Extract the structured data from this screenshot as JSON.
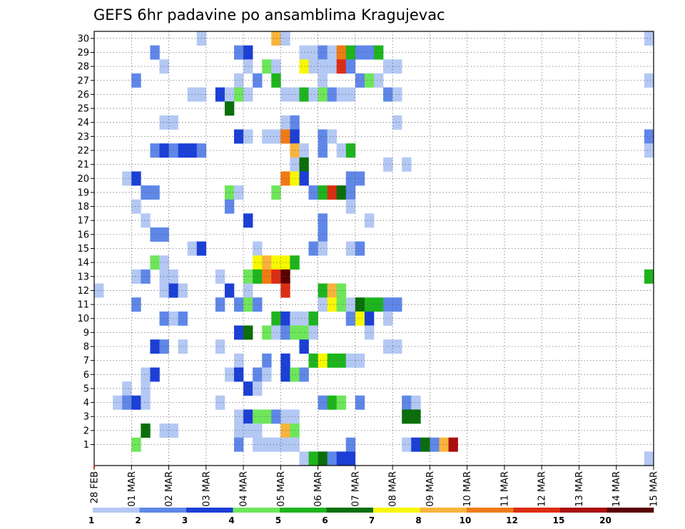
{
  "chart_data": {
    "type": "heatmap",
    "title": "GEFS 6hr padavine po ansamblima Kragujevac",
    "x_tick_labels": [
      "28 FEB",
      "01 MAR",
      "02 MAR",
      "03 MAR",
      "04 MAR",
      "05 MAR",
      "06 MAR",
      "07 MAR",
      "08 MAR",
      "09 MAR",
      "10 MAR",
      "11 MAR",
      "12 MAR",
      "13 MAR",
      "14 MAR",
      "15 MAR"
    ],
    "x_time_steps_per_day": 4,
    "xlim": [
      0,
      60
    ],
    "y_tick_labels": [
      "1",
      "2",
      "3",
      "4",
      "5",
      "6",
      "7",
      "8",
      "9",
      "10",
      "11",
      "12",
      "13",
      "14",
      "15",
      "16",
      "17",
      "18",
      "19",
      "20",
      "21",
      "22",
      "23",
      "24",
      "25",
      "26",
      "27",
      "28",
      "29",
      "30"
    ],
    "ylim": [
      0,
      30
    ],
    "grid": true,
    "legend_position": "bottom",
    "legend": {
      "labels": [
        "1",
        "2",
        "3",
        "4",
        "5",
        "6",
        "7",
        "8",
        "10",
        "12",
        "15",
        "20"
      ],
      "colors": [
        "#b4c8f4",
        "#5f87e8",
        "#1c3fd6",
        "#6ee65a",
        "#1eb41e",
        "#0a6e0a",
        "#f8f800",
        "#f8b43c",
        "#f07a14",
        "#dc2d14",
        "#aa0e0e",
        "#5a0000"
      ]
    },
    "cell_format": "[member, step_index(0-59, 6h), color_class(1-12)]",
    "cells": [
      [
        30,
        11,
        1
      ],
      [
        30,
        19,
        8
      ],
      [
        30,
        20,
        1
      ],
      [
        30,
        59,
        1
      ],
      [
        29,
        6,
        2
      ],
      [
        29,
        15,
        2
      ],
      [
        29,
        16,
        3
      ],
      [
        29,
        22,
        1
      ],
      [
        29,
        23,
        1
      ],
      [
        29,
        24,
        2
      ],
      [
        29,
        25,
        1
      ],
      [
        29,
        26,
        9
      ],
      [
        29,
        27,
        5
      ],
      [
        29,
        28,
        2
      ],
      [
        29,
        29,
        2
      ],
      [
        29,
        30,
        5
      ],
      [
        28,
        7,
        1
      ],
      [
        28,
        16,
        1
      ],
      [
        28,
        18,
        4
      ],
      [
        28,
        19,
        1
      ],
      [
        28,
        22,
        7
      ],
      [
        28,
        23,
        1
      ],
      [
        28,
        24,
        1
      ],
      [
        28,
        25,
        1
      ],
      [
        28,
        26,
        10
      ],
      [
        28,
        27,
        2
      ],
      [
        28,
        31,
        1
      ],
      [
        28,
        32,
        1
      ],
      [
        27,
        4,
        2
      ],
      [
        27,
        15,
        1
      ],
      [
        27,
        17,
        2
      ],
      [
        27,
        19,
        5
      ],
      [
        27,
        24,
        1
      ],
      [
        27,
        28,
        2
      ],
      [
        27,
        29,
        4
      ],
      [
        27,
        30,
        1
      ],
      [
        27,
        59,
        1
      ],
      [
        26,
        10,
        1
      ],
      [
        26,
        11,
        1
      ],
      [
        26,
        13,
        3
      ],
      [
        26,
        14,
        1
      ],
      [
        26,
        15,
        4
      ],
      [
        26,
        16,
        1
      ],
      [
        26,
        20,
        1
      ],
      [
        26,
        21,
        1
      ],
      [
        26,
        22,
        5
      ],
      [
        26,
        23,
        1
      ],
      [
        26,
        24,
        4
      ],
      [
        26,
        25,
        2
      ],
      [
        26,
        26,
        1
      ],
      [
        26,
        27,
        1
      ],
      [
        26,
        31,
        2
      ],
      [
        26,
        32,
        1
      ],
      [
        25,
        14,
        6
      ],
      [
        24,
        7,
        1
      ],
      [
        24,
        8,
        1
      ],
      [
        24,
        20,
        1
      ],
      [
        24,
        21,
        2
      ],
      [
        24,
        32,
        1
      ],
      [
        23,
        15,
        3
      ],
      [
        23,
        16,
        1
      ],
      [
        23,
        18,
        1
      ],
      [
        23,
        19,
        1
      ],
      [
        23,
        20,
        9
      ],
      [
        23,
        21,
        3
      ],
      [
        23,
        24,
        2
      ],
      [
        23,
        25,
        1
      ],
      [
        23,
        59,
        2
      ],
      [
        22,
        6,
        2
      ],
      [
        22,
        7,
        3
      ],
      [
        22,
        8,
        2
      ],
      [
        22,
        9,
        3
      ],
      [
        22,
        10,
        3
      ],
      [
        22,
        11,
        2
      ],
      [
        22,
        21,
        8
      ],
      [
        22,
        22,
        1
      ],
      [
        22,
        24,
        2
      ],
      [
        22,
        26,
        1
      ],
      [
        22,
        27,
        5
      ],
      [
        22,
        59,
        1
      ],
      [
        21,
        21,
        1
      ],
      [
        21,
        22,
        6
      ],
      [
        21,
        31,
        1
      ],
      [
        21,
        33,
        1
      ],
      [
        20,
        3,
        1
      ],
      [
        20,
        4,
        3
      ],
      [
        20,
        20,
        9
      ],
      [
        20,
        21,
        7
      ],
      [
        20,
        22,
        3
      ],
      [
        20,
        27,
        2
      ],
      [
        20,
        28,
        2
      ],
      [
        19,
        5,
        2
      ],
      [
        19,
        6,
        2
      ],
      [
        19,
        14,
        4
      ],
      [
        19,
        15,
        1
      ],
      [
        19,
        19,
        4
      ],
      [
        19,
        23,
        2
      ],
      [
        19,
        24,
        5
      ],
      [
        19,
        25,
        10
      ],
      [
        19,
        26,
        6
      ],
      [
        19,
        27,
        2
      ],
      [
        18,
        4,
        1
      ],
      [
        18,
        14,
        2
      ],
      [
        18,
        27,
        1
      ],
      [
        17,
        5,
        1
      ],
      [
        17,
        16,
        3
      ],
      [
        17,
        24,
        2
      ],
      [
        17,
        29,
        1
      ],
      [
        16,
        6,
        2
      ],
      [
        16,
        7,
        2
      ],
      [
        16,
        24,
        2
      ],
      [
        15,
        10,
        1
      ],
      [
        15,
        11,
        3
      ],
      [
        15,
        17,
        1
      ],
      [
        15,
        23,
        2
      ],
      [
        15,
        24,
        1
      ],
      [
        15,
        27,
        1
      ],
      [
        15,
        28,
        2
      ],
      [
        14,
        6,
        4
      ],
      [
        14,
        7,
        1
      ],
      [
        14,
        17,
        7
      ],
      [
        14,
        18,
        8
      ],
      [
        14,
        19,
        7
      ],
      [
        14,
        20,
        7
      ],
      [
        14,
        21,
        5
      ],
      [
        13,
        4,
        1
      ],
      [
        13,
        5,
        2
      ],
      [
        13,
        7,
        1
      ],
      [
        13,
        8,
        1
      ],
      [
        13,
        13,
        1
      ],
      [
        13,
        16,
        4
      ],
      [
        13,
        17,
        5
      ],
      [
        13,
        18,
        9
      ],
      [
        13,
        19,
        10
      ],
      [
        13,
        20,
        12
      ],
      [
        13,
        59,
        5
      ],
      [
        12,
        0,
        1
      ],
      [
        12,
        7,
        1
      ],
      [
        12,
        8,
        3
      ],
      [
        12,
        9,
        1
      ],
      [
        12,
        14,
        3
      ],
      [
        12,
        16,
        1
      ],
      [
        12,
        20,
        10
      ],
      [
        12,
        24,
        5
      ],
      [
        12,
        25,
        8
      ],
      [
        12,
        26,
        4
      ],
      [
        11,
        4,
        2
      ],
      [
        11,
        13,
        2
      ],
      [
        11,
        15,
        2
      ],
      [
        11,
        16,
        4
      ],
      [
        11,
        17,
        2
      ],
      [
        11,
        24,
        1
      ],
      [
        11,
        25,
        7
      ],
      [
        11,
        26,
        4
      ],
      [
        11,
        27,
        1
      ],
      [
        11,
        28,
        6
      ],
      [
        11,
        29,
        5
      ],
      [
        11,
        30,
        5
      ],
      [
        11,
        31,
        2
      ],
      [
        11,
        32,
        2
      ],
      [
        10,
        7,
        2
      ],
      [
        10,
        8,
        1
      ],
      [
        10,
        9,
        2
      ],
      [
        10,
        19,
        5
      ],
      [
        10,
        20,
        3
      ],
      [
        10,
        21,
        1
      ],
      [
        10,
        22,
        1
      ],
      [
        10,
        23,
        5
      ],
      [
        10,
        27,
        2
      ],
      [
        10,
        28,
        7
      ],
      [
        10,
        29,
        3
      ],
      [
        10,
        31,
        1
      ],
      [
        9,
        15,
        3
      ],
      [
        9,
        16,
        6
      ],
      [
        9,
        18,
        4
      ],
      [
        9,
        19,
        1
      ],
      [
        9,
        20,
        2
      ],
      [
        9,
        21,
        4
      ],
      [
        9,
        22,
        4
      ],
      [
        9,
        23,
        1
      ],
      [
        9,
        29,
        1
      ],
      [
        8,
        6,
        3
      ],
      [
        8,
        7,
        2
      ],
      [
        8,
        9,
        1
      ],
      [
        8,
        13,
        1
      ],
      [
        8,
        22,
        3
      ],
      [
        8,
        31,
        1
      ],
      [
        8,
        32,
        1
      ],
      [
        7,
        15,
        1
      ],
      [
        7,
        18,
        2
      ],
      [
        7,
        20,
        3
      ],
      [
        7,
        23,
        5
      ],
      [
        7,
        24,
        7
      ],
      [
        7,
        25,
        5
      ],
      [
        7,
        26,
        5
      ],
      [
        7,
        27,
        1
      ],
      [
        7,
        28,
        1
      ],
      [
        6,
        5,
        1
      ],
      [
        6,
        6,
        3
      ],
      [
        6,
        14,
        1
      ],
      [
        6,
        15,
        3
      ],
      [
        6,
        17,
        2
      ],
      [
        6,
        18,
        1
      ],
      [
        6,
        20,
        3
      ],
      [
        6,
        21,
        4
      ],
      [
        6,
        22,
        2
      ],
      [
        5,
        3,
        1
      ],
      [
        5,
        5,
        1
      ],
      [
        5,
        16,
        3
      ],
      [
        5,
        17,
        1
      ],
      [
        4,
        2,
        1
      ],
      [
        4,
        3,
        2
      ],
      [
        4,
        4,
        3
      ],
      [
        4,
        5,
        1
      ],
      [
        4,
        13,
        1
      ],
      [
        4,
        24,
        2
      ],
      [
        4,
        25,
        5
      ],
      [
        4,
        26,
        4
      ],
      [
        4,
        28,
        2
      ],
      [
        4,
        33,
        2
      ],
      [
        4,
        34,
        1
      ],
      [
        3,
        15,
        1
      ],
      [
        3,
        16,
        3
      ],
      [
        3,
        17,
        4
      ],
      [
        3,
        18,
        4
      ],
      [
        3,
        19,
        2
      ],
      [
        3,
        20,
        1
      ],
      [
        3,
        21,
        1
      ],
      [
        3,
        33,
        6
      ],
      [
        3,
        34,
        6
      ],
      [
        2,
        5,
        6
      ],
      [
        2,
        7,
        1
      ],
      [
        2,
        8,
        1
      ],
      [
        2,
        15,
        1
      ],
      [
        2,
        16,
        1
      ],
      [
        2,
        17,
        1
      ],
      [
        2,
        20,
        8
      ],
      [
        2,
        21,
        4
      ],
      [
        1,
        4,
        4
      ],
      [
        1,
        15,
        2
      ],
      [
        1,
        17,
        1
      ],
      [
        1,
        18,
        1
      ],
      [
        1,
        19,
        1
      ],
      [
        1,
        20,
        1
      ],
      [
        1,
        21,
        1
      ],
      [
        1,
        27,
        2
      ],
      [
        1,
        33,
        1
      ],
      [
        1,
        34,
        3
      ],
      [
        1,
        35,
        6
      ],
      [
        1,
        36,
        2
      ],
      [
        1,
        37,
        8
      ],
      [
        1,
        38,
        11
      ],
      [
        0,
        22,
        1
      ],
      [
        0,
        23,
        5
      ],
      [
        0,
        24,
        6
      ],
      [
        0,
        25,
        2
      ],
      [
        0,
        26,
        3
      ],
      [
        0,
        27,
        3
      ],
      [
        0,
        59,
        1
      ]
    ]
  }
}
